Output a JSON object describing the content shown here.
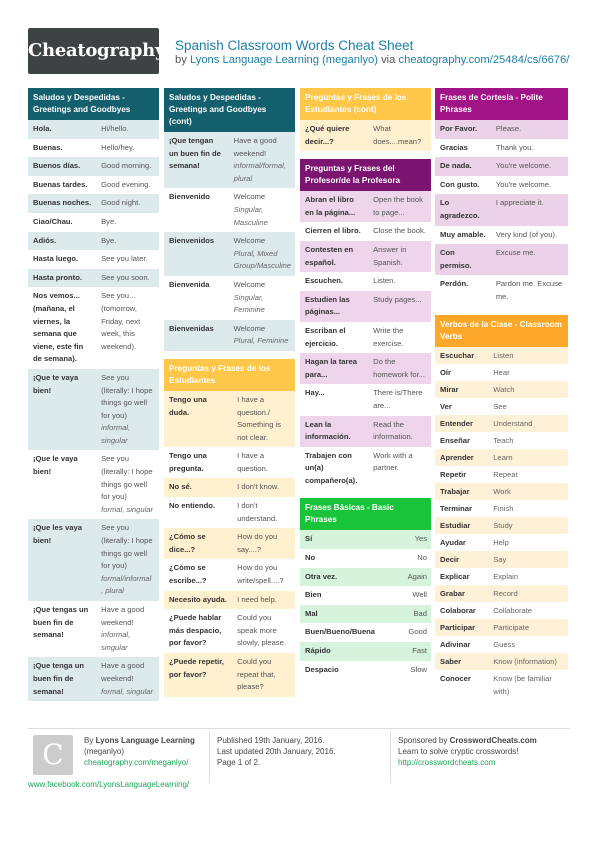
{
  "header": {
    "logo": "Cheatography",
    "title": "Spanish Classroom Words Cheat Sheet",
    "subtitle_prefix": "by ",
    "author": "Lyons Language Learning (meganlyo)",
    "via": " via ",
    "url": "cheatography.com/25484/cs/6676/"
  },
  "col1": [
    {
      "title": "Saludos y Despedidas - Greetings and Goodbyes",
      "rows": [
        {
          "k": "Hola.",
          "v": "Hi/hello."
        },
        {
          "k": "Buenas.",
          "v": "Hello/hey."
        },
        {
          "k": "Buenos días.",
          "v": "Good morning."
        },
        {
          "k": "Buenas tardes.",
          "v": "Good evening."
        },
        {
          "k": "Buenas noches.",
          "v": "Good night."
        },
        {
          "k": "Ciao/Chau.",
          "v": "Bye."
        },
        {
          "k": "Adiós.",
          "v": "Bye."
        },
        {
          "k": "Hasta luego.",
          "v": "See you later."
        },
        {
          "k": "Hasta pronto.",
          "v": "See you soon."
        },
        {
          "k": "Nos vemos... (mañana, el viernes, la semana que viene, este fin de semana).",
          "v": "See you... (tomorrow, Friday, next week, this weekend)."
        },
        {
          "k": "¡Que te vaya bien!",
          "v": "See you (literally: I hope things go well for you)",
          "note": "informal, singular"
        },
        {
          "k": "¡Que le vaya bien!",
          "v": "See you (literally: I hope things go well for you)",
          "note": "formal, singular"
        },
        {
          "k": "¡Que les vaya bien!",
          "v": "See you (literally: I hope things go well for you)",
          "note": "formal/informal , plural"
        },
        {
          "k": "¡Que tengas un buen fin de semana!",
          "v": "Have a good weekend!",
          "note": "informal, singular"
        },
        {
          "k": "¡Que tenga un buen fin de semana!",
          "v": "Have a good weekend!",
          "note": "formal, singular"
        }
      ]
    }
  ],
  "col2": [
    {
      "title": "Saludos y Despedidas - Greetings and Goodbyes (cont)",
      "rows": [
        {
          "k": "¡Que tengan un buen fin de semana!",
          "v": "Have a good weekend!",
          "note": "informal/formal, plural"
        },
        {
          "k": "Bienvenido",
          "v": "Welcome",
          "note": "Singular, Masculine"
        },
        {
          "k": "Bienvenidos",
          "v": "Welcome",
          "note": "Plural, Mixed Group/Masculine"
        },
        {
          "k": "Bienvenida",
          "v": "Welcome",
          "note": "Singular, Feminine"
        },
        {
          "k": "Bienvenidas",
          "v": "Welcome",
          "note": "Plural, Feminine"
        }
      ]
    },
    {
      "title": "Preguntas y Frases de los Estudiantes",
      "rows": [
        {
          "k": "Tengo una duda.",
          "v": "I have a question./ Something is not clear."
        },
        {
          "k": "Tengo una pregunta.",
          "v": "I have a question."
        },
        {
          "k": "No sé.",
          "v": "I don't know."
        },
        {
          "k": "No entiendo.",
          "v": "I don't understand."
        },
        {
          "k": "¿Cómo se dice...?",
          "v": "How do you say....?"
        },
        {
          "k": "¿Cómo se escribe...?",
          "v": "How do you write/spell....?"
        },
        {
          "k": "Necesito ayuda.",
          "v": "I need help."
        },
        {
          "k": "¿Puede hablar más despacio, por favor?",
          "v": "Could you speak more slowly, please."
        },
        {
          "k": "¿Puede repetir, por favor?",
          "v": "Could you repeat that, please?"
        }
      ]
    }
  ],
  "col3": [
    {
      "title": "Preguntas y Frases de los Estudiantes (cont)",
      "rows": [
        {
          "k": "¿Qué quiere decir...?",
          "v": "What does....mean?"
        }
      ]
    },
    {
      "title": "Preguntas y Frases del Profesor/de la Profesora",
      "rows": [
        {
          "k": "Abran el libro en la página...",
          "v": "Open the book to page..."
        },
        {
          "k": "Cierren el libro.",
          "v": "Close the book."
        },
        {
          "k": "Contesten en español.",
          "v": "Answer in Spanish."
        },
        {
          "k": "Escuchen.",
          "v": "Listen."
        },
        {
          "k": "Estudien las páginas...",
          "v": "Study pages..."
        },
        {
          "k": "Escriban el ejercicio.",
          "v": "Write the exercise."
        },
        {
          "k": "Hagan la tarea para...",
          "v": "Do the homework for..."
        },
        {
          "k": "Hay...",
          "v": "There is/There are..."
        },
        {
          "k": "Lean la información.",
          "v": "Read the information."
        },
        {
          "k": "Trabajen con un(a) compañero(a).",
          "v": "Work with a partner."
        }
      ]
    },
    {
      "title": "Frases Básicas - Basic Phrases",
      "rows": [
        {
          "k": "Sí",
          "v": "Yes"
        },
        {
          "k": "No",
          "v": "No"
        },
        {
          "k": "Otra vez.",
          "v": "Again"
        },
        {
          "k": "Bien",
          "v": "Well"
        },
        {
          "k": "Mal",
          "v": "Bad"
        },
        {
          "k": "Buen/Bueno/Buena",
          "v": "Good"
        },
        {
          "k": "Rápido",
          "v": "Fast"
        },
        {
          "k": "Despacio",
          "v": "Slow"
        }
      ]
    }
  ],
  "col4": [
    {
      "title": "Frases de Cortesía - Polite Phrases",
      "rows": [
        {
          "k": "Por Favor.",
          "v": "Please."
        },
        {
          "k": "Gracias",
          "v": "Thank you."
        },
        {
          "k": "De nada.",
          "v": "You're welcome."
        },
        {
          "k": "Con gusto.",
          "v": "You're welcome."
        },
        {
          "k": "Lo agradezco.",
          "v": "I appreciate it."
        },
        {
          "k": "Muy amable.",
          "v": "Very kind (of you)."
        },
        {
          "k": "Con permiso.",
          "v": "Excuse me."
        },
        {
          "k": "Perdón.",
          "v": "Pardon me. Excuse me."
        }
      ]
    },
    {
      "title": "Verbos de la Clase - Classroom Verbs",
      "rows": [
        {
          "k": "Escuchar",
          "v": "Listen"
        },
        {
          "k": "Oír",
          "v": "Hear"
        },
        {
          "k": "Mirar",
          "v": "Watch"
        },
        {
          "k": "Ver",
          "v": "See"
        },
        {
          "k": "Entender",
          "v": "Understand"
        },
        {
          "k": "Enseñar",
          "v": "Teach"
        },
        {
          "k": "Aprender",
          "v": "Learn"
        },
        {
          "k": "Repetir",
          "v": "Repeat"
        },
        {
          "k": "Trabajar",
          "v": "Work"
        },
        {
          "k": "Terminar",
          "v": "Finish"
        },
        {
          "k": "Estudiar",
          "v": "Study"
        },
        {
          "k": "Ayudar",
          "v": "Help"
        },
        {
          "k": "Decir",
          "v": "Say"
        },
        {
          "k": "Explicar",
          "v": "Explain"
        },
        {
          "k": "Grabar",
          "v": "Record"
        },
        {
          "k": "Colaborar",
          "v": "Collaborate"
        },
        {
          "k": "Participar",
          "v": "Participate"
        },
        {
          "k": "Adivinar",
          "v": "Guess"
        },
        {
          "k": "Saber",
          "v": "Know (information)"
        },
        {
          "k": "Conocer",
          "v": "Know (be familiar with)"
        }
      ]
    }
  ],
  "footer": {
    "logo_letter": "C",
    "by": "By ",
    "author": "Lyons Language Learning",
    "handle": "(meganlyo)",
    "author_url": "cheatography.com/meganlyo/",
    "facebook": "www.facebook.com/LyonsLanguageLearning/",
    "published": "Published 19th January, 2016.",
    "updated": "Last updated 20th January, 2016.",
    "page": "Page 1 of 2.",
    "sponsored": "Sponsored by ",
    "sponsor": "CrosswordCheats.com",
    "sponsor_tag": "Learn to solve cryptic crosswords!",
    "sponsor_url": "http://crosswordcheats.com"
  },
  "colors": {
    "teal": "#145f6e",
    "yellow": "#ffc74a",
    "purple": "#7b1370",
    "orange": "#fca728",
    "green": "#19c43b",
    "magenta": "#a11487",
    "link": "#1e7fa6"
  }
}
